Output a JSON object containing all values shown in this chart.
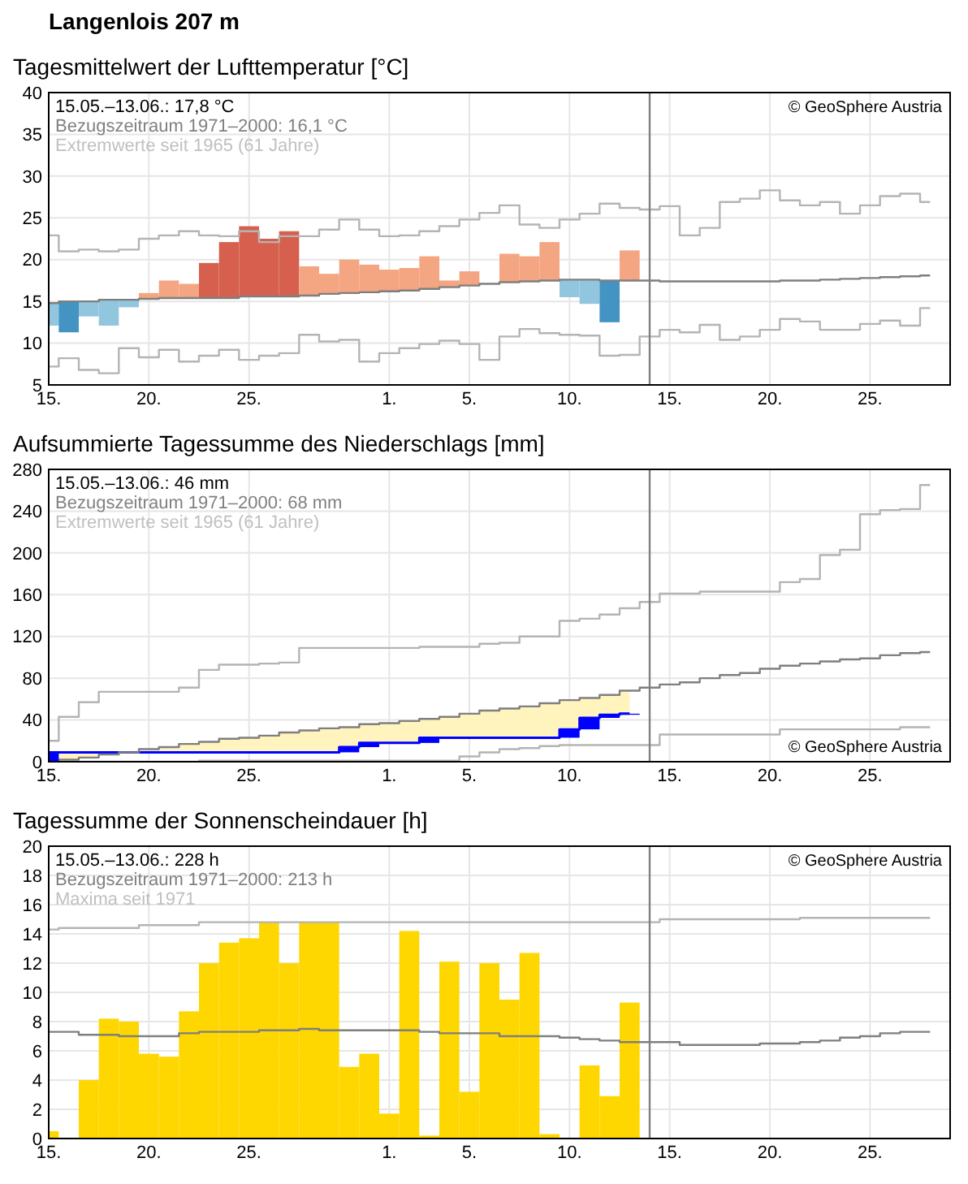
{
  "chart_data": [
    {
      "type": "step",
      "title": "Langenlois 207 m",
      "subtitle": "Tagesmittelwert der Lufttemperatur [°C]",
      "annotations": [
        "15.05.–13.06.: 17,8 °C",
        "Bezugszeitraum 1971–2000: 16,1 °C",
        "Extremwerte seit 1965 (61 Jahre)",
        "© GeoSphere Austria"
      ],
      "x": [
        "--05-15",
        "--05-16",
        "--05-17",
        "--05-18",
        "--05-19",
        "--05-20",
        "--05-21",
        "--05-22",
        "--05-23",
        "--05-24",
        "--05-25",
        "--05-26",
        "--05-27",
        "--05-28",
        "--05-29",
        "--05-30",
        "--05-31",
        "--06-01",
        "--06-02",
        "--06-03",
        "--06-04",
        "--06-05",
        "--06-06",
        "--06-07",
        "--06-08",
        "--06-09",
        "--06-10",
        "--06-11",
        "--06-12",
        "--06-13",
        "--06-14",
        "--06-15",
        "--06-16",
        "--06-17",
        "--06-18",
        "--06-19",
        "--06-20",
        "--06-21",
        "--06-22",
        "--06-23",
        "--06-24",
        "--06-25",
        "--06-26",
        "--06-27",
        "--06-28"
      ],
      "xlim": [
        "--05-15",
        "--06-29"
      ],
      "xticks": [
        {
          "value": "--05-15",
          "label": "15."
        },
        {
          "value": "--05-20",
          "label": "20."
        },
        {
          "value": "--05-25",
          "label": "25."
        },
        {
          "value": "--06-01",
          "label": "1."
        },
        {
          "value": "--06-05",
          "label": "5."
        },
        {
          "value": "--06-10",
          "label": "10."
        },
        {
          "value": "--06-15",
          "label": "15."
        },
        {
          "value": "--06-20",
          "label": "20."
        },
        {
          "value": "--06-25",
          "label": "25."
        }
      ],
      "ylim": [
        5,
        40
      ],
      "yticks": [
        5,
        10,
        15,
        20,
        25,
        30,
        35,
        40
      ],
      "grid": true,
      "ref_lines": [
        {
          "axis": "x",
          "value": "--06-14",
          "color": "#808080"
        }
      ],
      "series": [
        {
          "type": "bar",
          "base": [
            14.8,
            15.0,
            15.0,
            15.2,
            15.2,
            15.3,
            15.4,
            15.4,
            15.4,
            15.4,
            15.6,
            15.6,
            15.6,
            15.7,
            15.9,
            16.0,
            16.1,
            16.2,
            16.3,
            16.5,
            16.7,
            16.9,
            null,
            17.3,
            17.4,
            17.5,
            17.6,
            17.6,
            17.5,
            17.5,
            null,
            null,
            null,
            null,
            null,
            null,
            null,
            null,
            null,
            null,
            null,
            null,
            null,
            null,
            null
          ],
          "values": [
            -2.7,
            -3.7,
            -1.8,
            -3.1,
            -0.9,
            0.7,
            2.1,
            1.7,
            4.2,
            6.7,
            8.4,
            6.9,
            7.8,
            3.5,
            2.4,
            4.0,
            3.3,
            2.6,
            2.7,
            3.9,
            0.8,
            1.7,
            null,
            3.4,
            3.0,
            4.6,
            -2.1,
            -2.9,
            -5.0,
            3.6,
            null,
            null,
            null,
            null,
            null,
            null,
            null,
            null,
            null,
            null,
            null,
            null,
            null,
            null,
            null
          ],
          "colors": [
            "#92c5de",
            "#4393c3",
            "#92c5de",
            "#92c5de",
            "#92c5de",
            "#f4a582",
            "#f4a582",
            "#f4a582",
            "#d6604d",
            "#d6604d",
            "#d6604d",
            "#d6604d",
            "#d6604d",
            "#f4a582",
            "#f4a582",
            "#f4a582",
            "#f4a582",
            "#f4a582",
            "#f4a582",
            "#f4a582",
            "#f4a582",
            "#f4a582",
            null,
            "#f4a582",
            "#f4a582",
            "#f4a582",
            "#92c5de",
            "#92c5de",
            "#4393c3",
            "#f4a582",
            null,
            null,
            null,
            null,
            null,
            null,
            null,
            null,
            null,
            null,
            null,
            null,
            null,
            null,
            null
          ]
        },
        {
          "color": "#b4b4b4",
          "values": [
            22.9,
            21.0,
            21.2,
            21.0,
            21.2,
            22.5,
            22.9,
            23.4,
            22.9,
            22.8,
            23.4,
            22.1,
            22.8,
            22.8,
            23.6,
            24.8,
            23.6,
            22.8,
            22.9,
            23.4,
            24.0,
            24.8,
            25.6,
            26.5,
            24.2,
            23.8,
            24.8,
            25.5,
            26.7,
            26.2,
            26.0,
            26.4,
            22.9,
            23.8,
            26.9,
            27.3,
            28.3,
            27.1,
            26.5,
            26.9,
            25.5,
            26.5,
            27.6,
            27.9,
            26.9
          ]
        },
        {
          "color": "#b4b4b4",
          "values": [
            7.2,
            8.2,
            6.8,
            6.4,
            9.4,
            8.3,
            9.2,
            7.8,
            8.5,
            9.2,
            8.0,
            8.5,
            8.8,
            11.0,
            10.2,
            10.4,
            7.8,
            8.8,
            9.4,
            9.9,
            10.3,
            9.9,
            8.0,
            10.8,
            11.7,
            11.2,
            11.0,
            10.9,
            8.5,
            8.6,
            10.8,
            11.6,
            11.3,
            12.2,
            10.4,
            10.8,
            11.6,
            12.9,
            12.6,
            11.6,
            11.6,
            12.3,
            12.7,
            12.1,
            14.2
          ]
        },
        {
          "color": "#7f7f7f",
          "values": [
            14.8,
            15.0,
            15.0,
            15.2,
            15.2,
            15.3,
            15.4,
            15.4,
            15.4,
            15.4,
            15.6,
            15.6,
            15.6,
            15.7,
            15.9,
            16.0,
            16.1,
            16.2,
            16.3,
            16.5,
            16.7,
            16.9,
            17.1,
            17.3,
            17.4,
            17.5,
            17.6,
            17.6,
            17.5,
            17.5,
            17.5,
            17.4,
            17.4,
            17.4,
            17.4,
            17.4,
            17.4,
            17.5,
            17.5,
            17.6,
            17.7,
            17.8,
            17.9,
            18.0,
            18.1
          ]
        }
      ]
    },
    {
      "type": "step",
      "title": "Aufsummierte Tagessumme des Niederschlags [mm]",
      "annotations": [
        "15.05.–13.06.: 46 mm",
        "Bezugszeitraum 1971–2000: 68 mm",
        "Extremwerte seit 1965 (61 Jahre)",
        "© GeoSphere Austria"
      ],
      "x": [
        "--05-15",
        "--05-16",
        "--05-17",
        "--05-18",
        "--05-19",
        "--05-20",
        "--05-21",
        "--05-22",
        "--05-23",
        "--05-24",
        "--05-25",
        "--05-26",
        "--05-27",
        "--05-28",
        "--05-29",
        "--05-30",
        "--05-31",
        "--06-01",
        "--06-02",
        "--06-03",
        "--06-04",
        "--06-05",
        "--06-06",
        "--06-07",
        "--06-08",
        "--06-09",
        "--06-10",
        "--06-11",
        "--06-12",
        "--06-13",
        "--06-14",
        "--06-15",
        "--06-16",
        "--06-17",
        "--06-18",
        "--06-19",
        "--06-20",
        "--06-21",
        "--06-22",
        "--06-23",
        "--06-24",
        "--06-25",
        "--06-26",
        "--06-27",
        "--06-28"
      ],
      "xlim": [
        "--05-15",
        "--06-29"
      ],
      "xticks": [
        {
          "value": "--05-15",
          "label": "15."
        },
        {
          "value": "--05-20",
          "label": "20."
        },
        {
          "value": "--05-25",
          "label": "25."
        },
        {
          "value": "--06-01",
          "label": "1."
        },
        {
          "value": "--06-05",
          "label": "5."
        },
        {
          "value": "--06-10",
          "label": "10."
        },
        {
          "value": "--06-15",
          "label": "15."
        },
        {
          "value": "--06-20",
          "label": "20."
        },
        {
          "value": "--06-25",
          "label": "25."
        }
      ],
      "ylim": [
        0,
        280
      ],
      "yticks": [
        0,
        40,
        80,
        120,
        160,
        200,
        240,
        280
      ],
      "grid": true,
      "ref_lines": [
        {
          "axis": "x",
          "value": "--06-14",
          "color": "#808080"
        }
      ],
      "series": [
        {
          "color": "#0000ff",
          "values": [
            9,
            9,
            9,
            9,
            9,
            9,
            9,
            9,
            9,
            9,
            9,
            9,
            9,
            9,
            9,
            14,
            18,
            18,
            18,
            23,
            23,
            23,
            23,
            23,
            23,
            23,
            31,
            42,
            45,
            46,
            null,
            null,
            null,
            null,
            null,
            null,
            null,
            null,
            null,
            null,
            null,
            null,
            null,
            null,
            null
          ],
          "lower": [
            9,
            9,
            9,
            9,
            9,
            9,
            9,
            9,
            9,
            9,
            9,
            9,
            9,
            9,
            9,
            14,
            18,
            18,
            18,
            23,
            23,
            23,
            23,
            23,
            23,
            23,
            31,
            42,
            45,
            46,
            null,
            null,
            null,
            null,
            null,
            null,
            null,
            null,
            null,
            null,
            null,
            null,
            null,
            null,
            null
          ],
          "upper": [
            0,
            2,
            4,
            7,
            9,
            12,
            14,
            17,
            19,
            22,
            23,
            25,
            28,
            30,
            32,
            33,
            36,
            37,
            39,
            41,
            43,
            46,
            49,
            51,
            53,
            56,
            59,
            61,
            64,
            68,
            null,
            null,
            null,
            null,
            null,
            null,
            null,
            null,
            null,
            null,
            null,
            null,
            null,
            null,
            null
          ]
        },
        {
          "color": "#b4b4b4",
          "values": [
            20,
            43,
            57,
            67,
            67,
            67,
            67,
            71,
            88,
            93,
            93,
            94,
            95,
            109,
            109,
            109,
            109,
            109,
            109,
            110,
            110,
            110,
            113,
            114,
            120,
            120,
            135,
            137,
            141,
            147,
            153,
            161,
            161,
            163,
            163,
            163,
            163,
            172,
            175,
            198,
            203,
            237,
            241,
            242,
            265
          ]
        },
        {
          "color": "#b4b4b4",
          "values": [
            0,
            0,
            0,
            0,
            0,
            0,
            0,
            0,
            1,
            1,
            1,
            1,
            1,
            1,
            1,
            1,
            1,
            1,
            1,
            1,
            1,
            5,
            9,
            12,
            13,
            15,
            16,
            16,
            16,
            16,
            16,
            26,
            26,
            26,
            26,
            26,
            26,
            31,
            31,
            31,
            31,
            31,
            31,
            33,
            33
          ]
        },
        {
          "color": "#7f7f7f",
          "values": [
            0,
            2,
            4,
            7,
            9,
            12,
            14,
            17,
            19,
            22,
            23,
            25,
            28,
            30,
            32,
            33,
            36,
            37,
            39,
            41,
            43,
            46,
            49,
            51,
            53,
            56,
            59,
            61,
            64,
            68,
            71,
            74,
            76,
            80,
            83,
            85,
            89,
            92,
            94,
            96,
            98,
            99,
            102,
            104,
            105
          ]
        },
        {
          "type": "bar",
          "color": "#0000ff",
          "base": [
            0,
            null,
            null,
            null,
            null,
            null,
            null,
            null,
            null,
            null,
            null,
            null,
            null,
            null,
            null,
            9,
            14,
            null,
            null,
            18,
            null,
            null,
            null,
            null,
            null,
            null,
            23,
            31,
            42,
            45,
            null,
            null,
            null,
            null,
            null,
            null,
            null,
            null,
            null,
            null,
            null,
            null,
            null,
            null,
            null
          ],
          "values": [
            9,
            null,
            null,
            null,
            null,
            null,
            null,
            null,
            null,
            null,
            null,
            null,
            null,
            null,
            null,
            5,
            4,
            null,
            null,
            5,
            null,
            null,
            null,
            null,
            null,
            null,
            8,
            11,
            3,
            1,
            null,
            null,
            null,
            null,
            null,
            null,
            null,
            null,
            null,
            null,
            null,
            null,
            null,
            null,
            null
          ]
        }
      ]
    },
    {
      "type": "bar",
      "title": "Tagessumme der Sonnenscheindauer [h]",
      "annotations": [
        "15.05.–13.06.: 228 h",
        "Bezugszeitraum 1971–2000: 213 h",
        "Maxima seit 1971",
        "© GeoSphere Austria"
      ],
      "x": [
        "--05-15",
        "--05-16",
        "--05-17",
        "--05-18",
        "--05-19",
        "--05-20",
        "--05-21",
        "--05-22",
        "--05-23",
        "--05-24",
        "--05-25",
        "--05-26",
        "--05-27",
        "--05-28",
        "--05-29",
        "--05-30",
        "--05-31",
        "--06-01",
        "--06-02",
        "--06-03",
        "--06-04",
        "--06-05",
        "--06-06",
        "--06-07",
        "--06-08",
        "--06-09",
        "--06-10",
        "--06-11",
        "--06-12",
        "--06-13",
        "--06-14",
        "--06-15",
        "--06-16",
        "--06-17",
        "--06-18",
        "--06-19",
        "--06-20",
        "--06-21",
        "--06-22",
        "--06-23",
        "--06-24",
        "--06-25",
        "--06-26",
        "--06-27",
        "--06-28"
      ],
      "xlim": [
        "--05-15",
        "--06-29"
      ],
      "xticks": [
        {
          "value": "--05-15",
          "label": "15."
        },
        {
          "value": "--05-20",
          "label": "20."
        },
        {
          "value": "--05-25",
          "label": "25."
        },
        {
          "value": "--06-01",
          "label": "1."
        },
        {
          "value": "--06-05",
          "label": "5."
        },
        {
          "value": "--06-10",
          "label": "10."
        },
        {
          "value": "--06-15",
          "label": "15."
        },
        {
          "value": "--06-20",
          "label": "20."
        },
        {
          "value": "--06-25",
          "label": "25."
        }
      ],
      "ylim": [
        0,
        20
      ],
      "yticks": [
        0,
        2,
        4,
        6,
        8,
        10,
        12,
        14,
        16,
        18,
        20
      ],
      "grid": true,
      "ref_lines": [
        {
          "axis": "x",
          "value": "--06-14",
          "color": "#808080"
        }
      ],
      "series": [
        {
          "color": "#ffd700",
          "values": [
            0.5,
            0,
            4.0,
            8.2,
            8.0,
            5.8,
            5.6,
            8.7,
            12.0,
            13.4,
            13.7,
            14.8,
            12.0,
            14.8,
            14.8,
            4.9,
            5.8,
            1.7,
            14.2,
            0.2,
            12.1,
            3.2,
            12.0,
            9.5,
            12.7,
            0.3,
            0,
            5.0,
            2.9,
            9.3,
            null,
            null,
            null,
            null,
            null,
            null,
            null,
            null,
            null,
            null,
            null,
            null,
            null,
            null,
            null
          ]
        },
        {
          "type": "step",
          "color": "#b4b4b4",
          "values": [
            14.3,
            14.4,
            14.4,
            14.4,
            14.4,
            14.6,
            14.6,
            14.6,
            14.8,
            14.8,
            14.8,
            14.8,
            14.8,
            14.8,
            14.8,
            14.8,
            14.8,
            14.8,
            14.8,
            14.8,
            14.8,
            14.8,
            14.8,
            14.8,
            14.8,
            14.8,
            14.8,
            14.8,
            14.8,
            14.8,
            14.8,
            15.0,
            15.0,
            15.0,
            15.0,
            15.0,
            15.0,
            15.0,
            15.1,
            15.1,
            15.1,
            15.1,
            15.1,
            15.1,
            15.1
          ]
        },
        {
          "type": "step",
          "color": "#7f7f7f",
          "values": [
            7.3,
            7.3,
            7.1,
            7.1,
            7.0,
            7.0,
            7.0,
            7.2,
            7.3,
            7.3,
            7.3,
            7.4,
            7.4,
            7.5,
            7.4,
            7.4,
            7.4,
            7.4,
            7.4,
            7.3,
            7.2,
            7.2,
            7.2,
            7.0,
            7.0,
            7.0,
            6.9,
            6.8,
            6.7,
            6.6,
            6.6,
            6.6,
            6.4,
            6.4,
            6.4,
            6.4,
            6.5,
            6.5,
            6.6,
            6.7,
            6.9,
            7.0,
            7.2,
            7.3,
            7.3
          ]
        }
      ]
    }
  ]
}
